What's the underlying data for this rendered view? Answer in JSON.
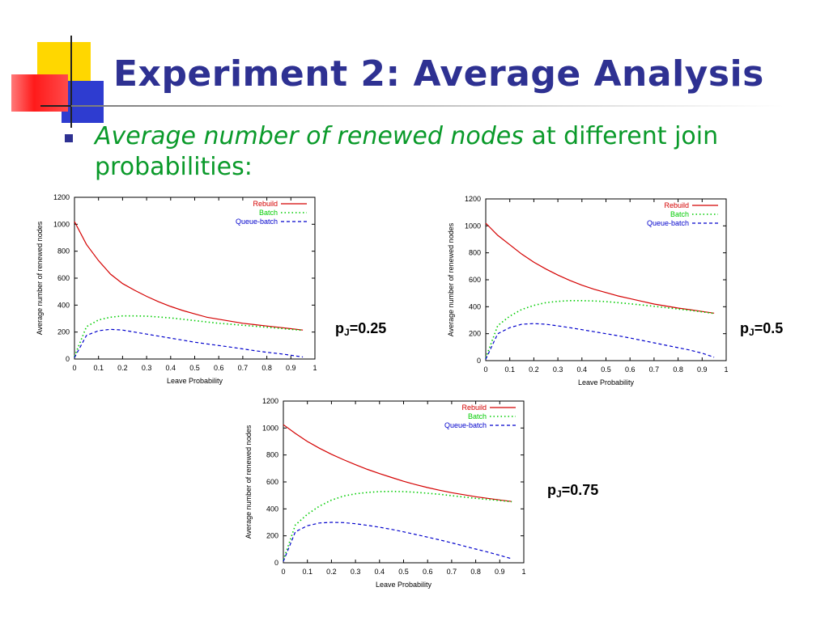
{
  "slide": {
    "title": "Experiment 2: Average Analysis",
    "bullet_italic": "Average number of renewed nodes",
    "bullet_rest": " at different join probabilities:",
    "bullet_color": "#0a9a2a",
    "title_color": "#2e3192"
  },
  "panel_labels": [
    {
      "prefix": "p",
      "sub": "J",
      "value": "=0.25"
    },
    {
      "prefix": "p",
      "sub": "J",
      "value": "=0.5"
    },
    {
      "prefix": "p",
      "sub": "J",
      "value": "=0.75"
    }
  ],
  "chart_data": [
    {
      "type": "line",
      "xlabel": "Leave Probability",
      "ylabel": "Average number of renewed nodes",
      "xlim": [
        0,
        1
      ],
      "ylim": [
        0,
        1200
      ],
      "xticks": [
        "0",
        "0.1",
        "0.2",
        "0.3",
        "0.4",
        "0.5",
        "0.6",
        "0.7",
        "0.8",
        "0.9",
        "1"
      ],
      "yticks": [
        "0",
        "200",
        "400",
        "600",
        "800",
        "1000",
        "1200"
      ],
      "legend_position": "top-right",
      "grid": false,
      "x": [
        0,
        0.05,
        0.1,
        0.15,
        0.2,
        0.25,
        0.3,
        0.35,
        0.4,
        0.45,
        0.5,
        0.55,
        0.6,
        0.65,
        0.7,
        0.75,
        0.8,
        0.85,
        0.9,
        0.95
      ],
      "series": [
        {
          "name": "Rebuild",
          "color": "#d40000",
          "style": "solid",
          "values": [
            1020,
            850,
            730,
            630,
            560,
            510,
            465,
            425,
            390,
            360,
            335,
            310,
            295,
            280,
            265,
            255,
            245,
            235,
            225,
            215
          ]
        },
        {
          "name": "Batch",
          "color": "#00cc00",
          "style": "dotted",
          "values": [
            20,
            240,
            290,
            310,
            320,
            320,
            318,
            312,
            305,
            295,
            285,
            275,
            265,
            258,
            250,
            243,
            236,
            228,
            220,
            213
          ]
        },
        {
          "name": "Queue-batch",
          "color": "#0000cc",
          "style": "dashed",
          "values": [
            10,
            175,
            210,
            220,
            215,
            200,
            185,
            170,
            155,
            140,
            125,
            112,
            100,
            88,
            75,
            62,
            50,
            40,
            28,
            15
          ]
        }
      ]
    },
    {
      "type": "line",
      "xlabel": "Leave Probability",
      "ylabel": "Average number of renewed nodes",
      "xlim": [
        0,
        1
      ],
      "ylim": [
        0,
        1200
      ],
      "xticks": [
        "0",
        "0.1",
        "0.2",
        "0.3",
        "0.4",
        "0.5",
        "0.6",
        "0.7",
        "0.8",
        "0.9",
        "1"
      ],
      "yticks": [
        "0",
        "200",
        "400",
        "600",
        "800",
        "1000",
        "1200"
      ],
      "legend_position": "top-right",
      "grid": false,
      "x": [
        0,
        0.05,
        0.1,
        0.15,
        0.2,
        0.25,
        0.3,
        0.35,
        0.4,
        0.45,
        0.5,
        0.55,
        0.6,
        0.65,
        0.7,
        0.75,
        0.8,
        0.85,
        0.9,
        0.95
      ],
      "series": [
        {
          "name": "Rebuild",
          "color": "#d40000",
          "style": "solid",
          "values": [
            1020,
            930,
            860,
            790,
            730,
            680,
            635,
            595,
            560,
            530,
            505,
            480,
            460,
            440,
            420,
            405,
            390,
            378,
            365,
            352
          ]
        },
        {
          "name": "Batch",
          "color": "#00cc00",
          "style": "dotted",
          "values": [
            20,
            260,
            330,
            380,
            410,
            430,
            440,
            445,
            445,
            443,
            438,
            430,
            422,
            413,
            403,
            393,
            383,
            373,
            362,
            350
          ]
        },
        {
          "name": "Queue-batch",
          "color": "#0000cc",
          "style": "dashed",
          "values": [
            10,
            200,
            245,
            270,
            275,
            270,
            258,
            245,
            230,
            215,
            200,
            185,
            168,
            150,
            132,
            114,
            96,
            78,
            55,
            25
          ]
        }
      ]
    },
    {
      "type": "line",
      "xlabel": "Leave Probability",
      "ylabel": "Average number of renewed nodes",
      "xlim": [
        0,
        1
      ],
      "ylim": [
        0,
        1200
      ],
      "xticks": [
        "0",
        "0.1",
        "0.2",
        "0.3",
        "0.4",
        "0.5",
        "0.6",
        "0.7",
        "0.8",
        "0.9",
        "1"
      ],
      "yticks": [
        "0",
        "200",
        "400",
        "600",
        "800",
        "1000",
        "1200"
      ],
      "legend_position": "top-right",
      "grid": false,
      "x": [
        0,
        0.05,
        0.1,
        0.15,
        0.2,
        0.25,
        0.3,
        0.35,
        0.4,
        0.45,
        0.5,
        0.55,
        0.6,
        0.65,
        0.7,
        0.75,
        0.8,
        0.85,
        0.9,
        0.95
      ],
      "series": [
        {
          "name": "Rebuild",
          "color": "#d40000",
          "style": "solid",
          "values": [
            1025,
            960,
            900,
            850,
            805,
            765,
            728,
            693,
            662,
            633,
            605,
            580,
            558,
            538,
            520,
            505,
            490,
            478,
            466,
            455
          ]
        },
        {
          "name": "Batch",
          "color": "#00cc00",
          "style": "dotted",
          "values": [
            20,
            280,
            360,
            420,
            465,
            495,
            512,
            522,
            528,
            530,
            528,
            523,
            516,
            508,
            498,
            488,
            478,
            470,
            462,
            453
          ]
        },
        {
          "name": "Queue-batch",
          "color": "#0000cc",
          "style": "dashed",
          "values": [
            10,
            230,
            275,
            295,
            300,
            298,
            290,
            278,
            264,
            248,
            230,
            210,
            190,
            170,
            148,
            125,
            102,
            80,
            55,
            30
          ]
        }
      ]
    }
  ]
}
